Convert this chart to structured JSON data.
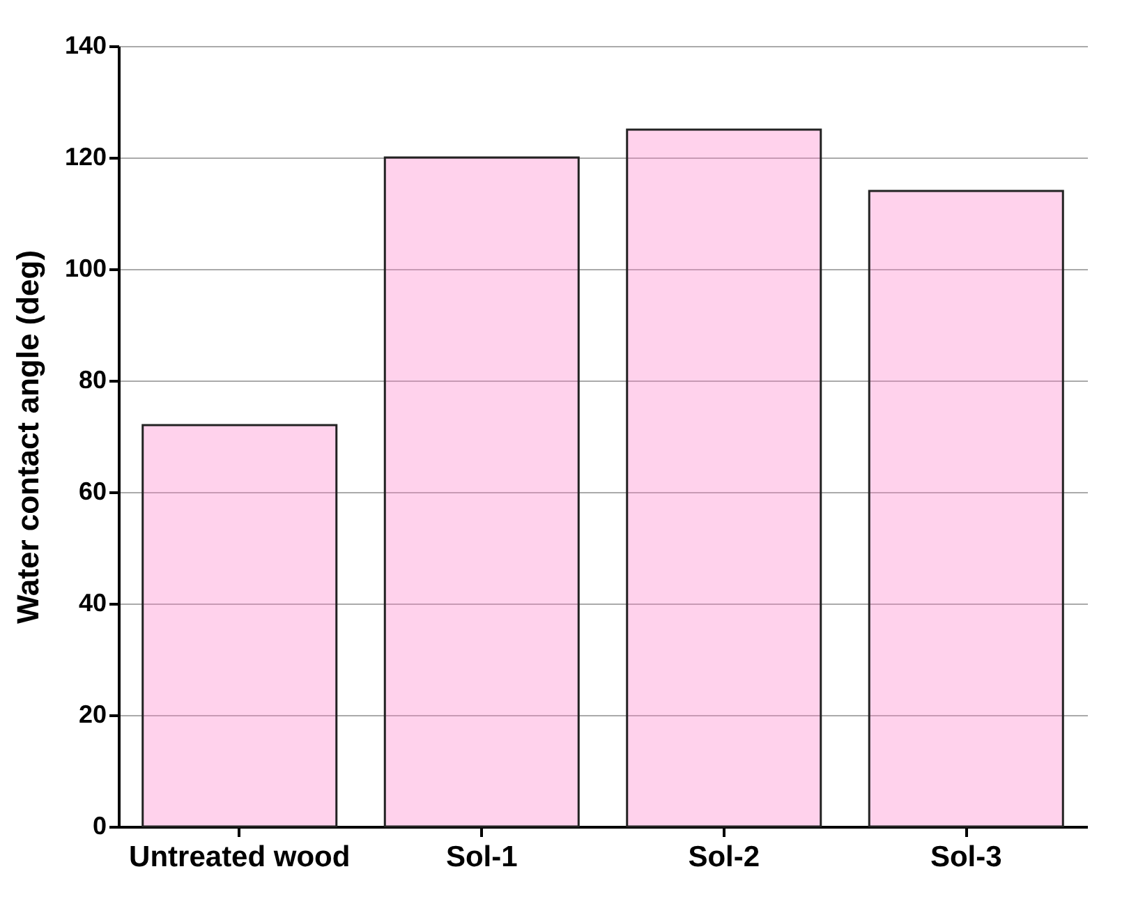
{
  "chart_data": {
    "type": "bar",
    "ylabel": "Water contact angle (deg)",
    "categories": [
      "Untreated wood",
      "Sol-1",
      "Sol-2",
      "Sol-3"
    ],
    "values": [
      72,
      120,
      125,
      114
    ],
    "color": "#ff7fc8",
    "ylim": [
      0,
      140
    ],
    "yticks": [
      0,
      20,
      40,
      60,
      80,
      100,
      120,
      140
    ],
    "grid": "y"
  }
}
